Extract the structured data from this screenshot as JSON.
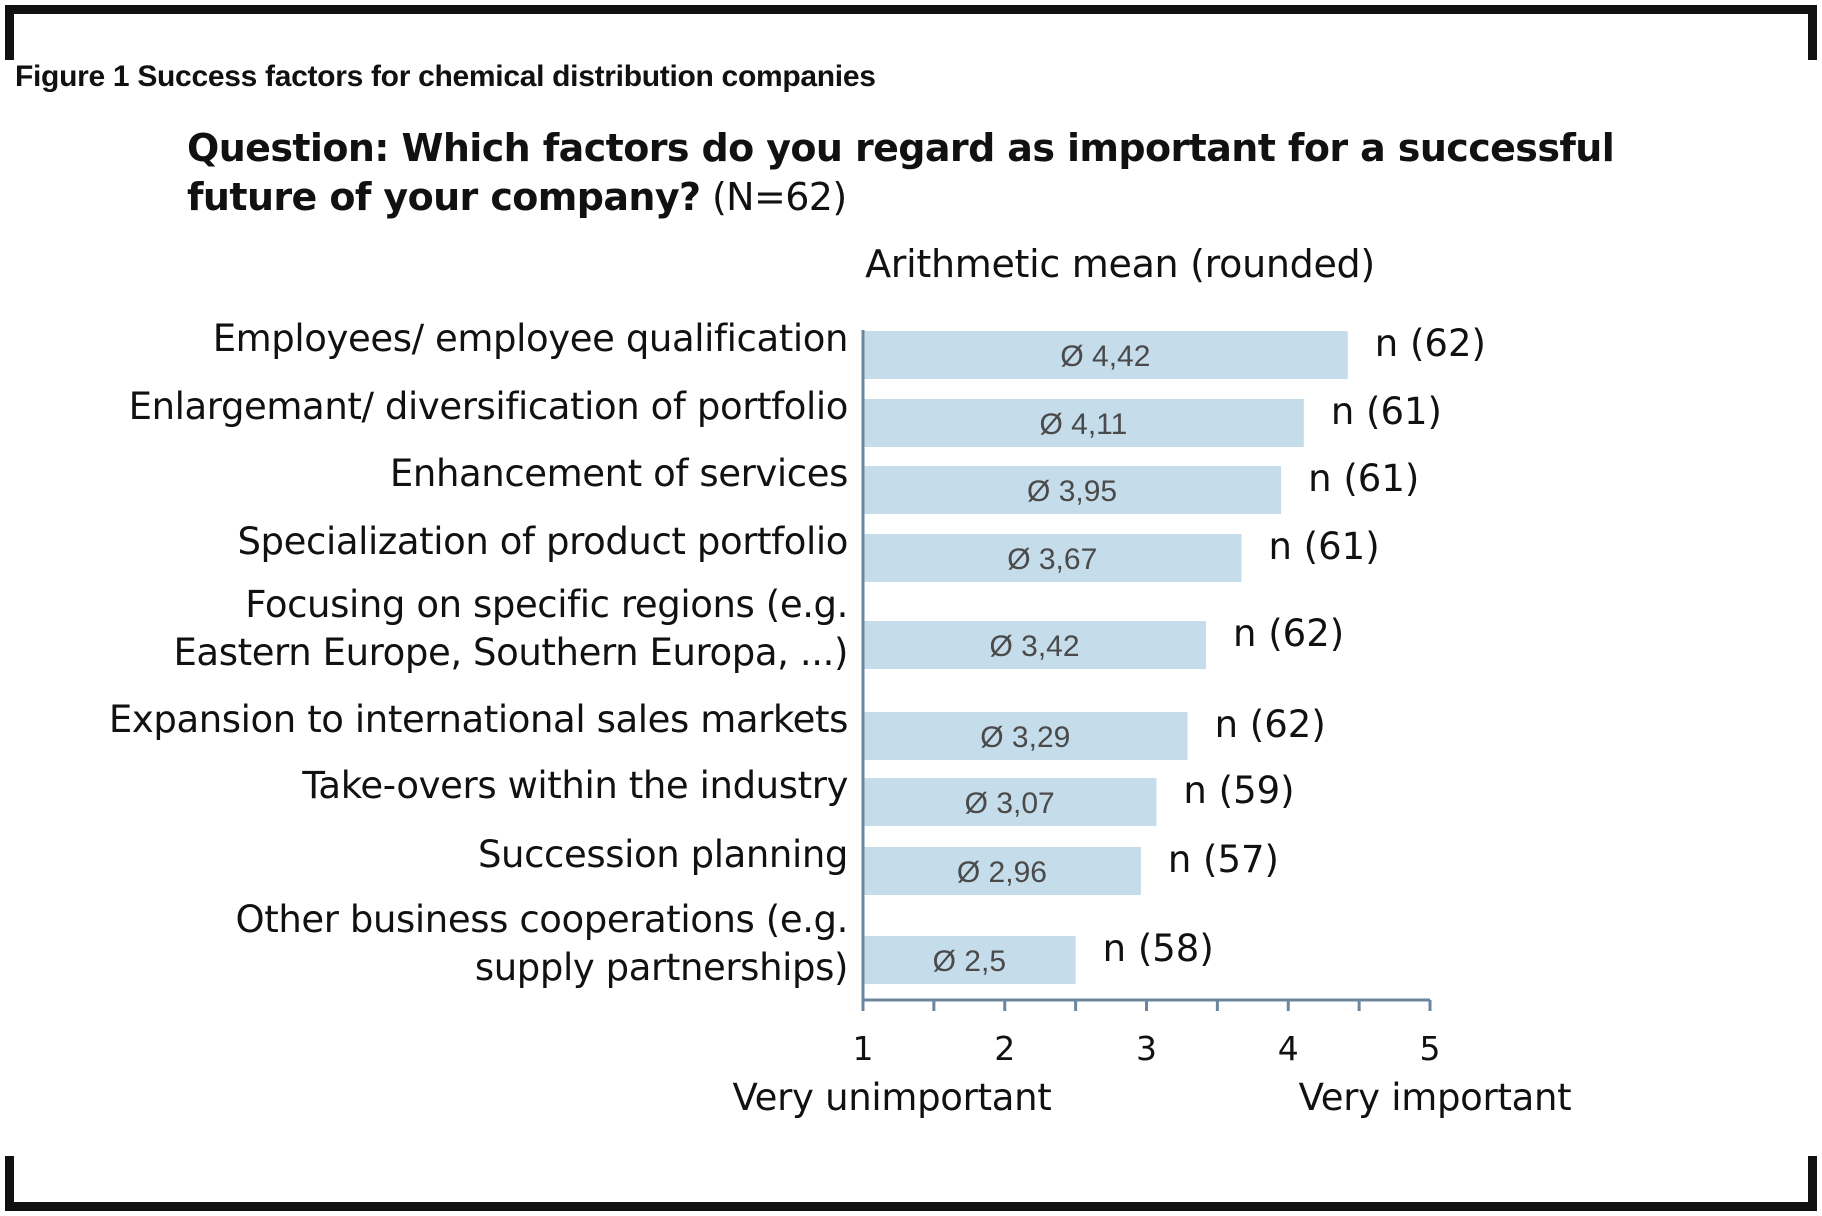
{
  "figure_title": "Figure 1 Success factors for chemical distribution companies",
  "question": {
    "bold": "Question: Which factors do you regard as important for a successful future of your company?",
    "n_total": "(N=62)"
  },
  "colors": {
    "bar": "#c5dceb",
    "axis": "#6b87a0"
  },
  "chart_data": {
    "type": "bar",
    "orientation": "horizontal",
    "subtitle": "Arithmetic mean (rounded)",
    "categories": [
      [
        "Employees/ employee qualification"
      ],
      [
        "Enlargemant/ diversification of portfolio"
      ],
      [
        "Enhancement of services"
      ],
      [
        "Specialization of product portfolio"
      ],
      [
        "Focusing on specific regions (e.g.",
        "Eastern Europe, Southern Europa, ...)"
      ],
      [
        "Expansion to international sales markets"
      ],
      [
        "Take-overs within the industry"
      ],
      [
        "Succession planning"
      ],
      [
        "Other business cooperations (e.g.",
        "supply partnerships)"
      ]
    ],
    "values": [
      4.42,
      4.11,
      3.95,
      3.67,
      3.42,
      3.29,
      3.07,
      2.96,
      2.5
    ],
    "value_labels": [
      "Ø 4,42",
      "Ø 4,11",
      "Ø 3,95",
      "Ø 3,67",
      "Ø 3,42",
      "Ø 3,29",
      "Ø 3,07",
      "Ø 2,96",
      "Ø 2,5"
    ],
    "n_labels": [
      "n (62)",
      "n (61)",
      "n (61)",
      "n (61)",
      "n (62)",
      "n (62)",
      "n (59)",
      "n (57)",
      "n (58)"
    ],
    "xlim": [
      1,
      5
    ],
    "xticks": [
      "1",
      "2",
      "3",
      "4",
      "5"
    ],
    "x_extremes": {
      "low": "Very unimportant",
      "high": "Very important"
    }
  }
}
